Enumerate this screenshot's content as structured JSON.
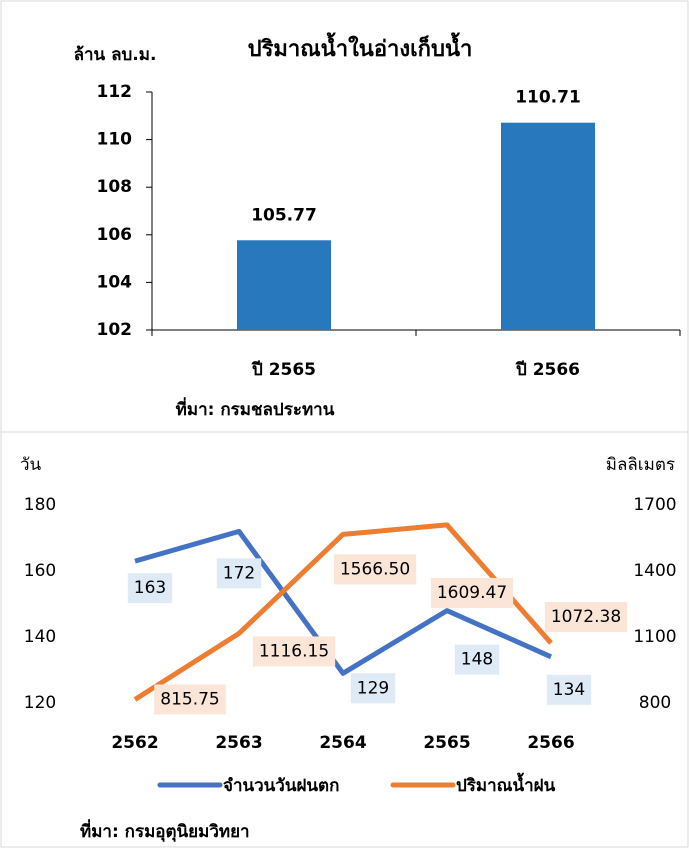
{
  "chart_data": [
    {
      "type": "bar",
      "title": "ปริมาณน้ำในอ่างเก็บน้ำ",
      "y_label": "ล้าน ลบ.ม.",
      "categories": [
        "ปี 2565",
        "ปี 2566"
      ],
      "values": [
        105.77,
        110.71
      ],
      "color": "#2878be",
      "ylim": [
        102,
        112
      ],
      "yticks": [
        102,
        104,
        106,
        108,
        110,
        112
      ],
      "source": "ที่มา:  กรมชลประทาน"
    },
    {
      "type": "line",
      "y_label": "วัน",
      "y2_label": "มิลลิเมตร",
      "categories": [
        "2562",
        "2563",
        "2564",
        "2565",
        "2566"
      ],
      "series": [
        {
          "name": "จำนวนวันฝนตก",
          "color": "#4472c4",
          "values": [
            163,
            172,
            129,
            148,
            134
          ],
          "axis": "y"
        },
        {
          "name": "ปริมาณน้ำฝน",
          "color": "#ed7d31",
          "values": [
            815.75,
            1116.15,
            1566.5,
            1609.47,
            1072.38
          ],
          "value_labels": [
            "815.75",
            "1116.15",
            "1566.50",
            "1609.47",
            "1072.38"
          ],
          "axis": "y2"
        }
      ],
      "ylim": [
        120,
        180
      ],
      "yticks": [
        120,
        140,
        160,
        180
      ],
      "y2lim": [
        800,
        1700
      ],
      "y2ticks": [
        800,
        1100,
        1400,
        1700
      ],
      "legend": "bottom",
      "source": "ที่มา: กรมอุตุนิยมวิทยา"
    }
  ]
}
